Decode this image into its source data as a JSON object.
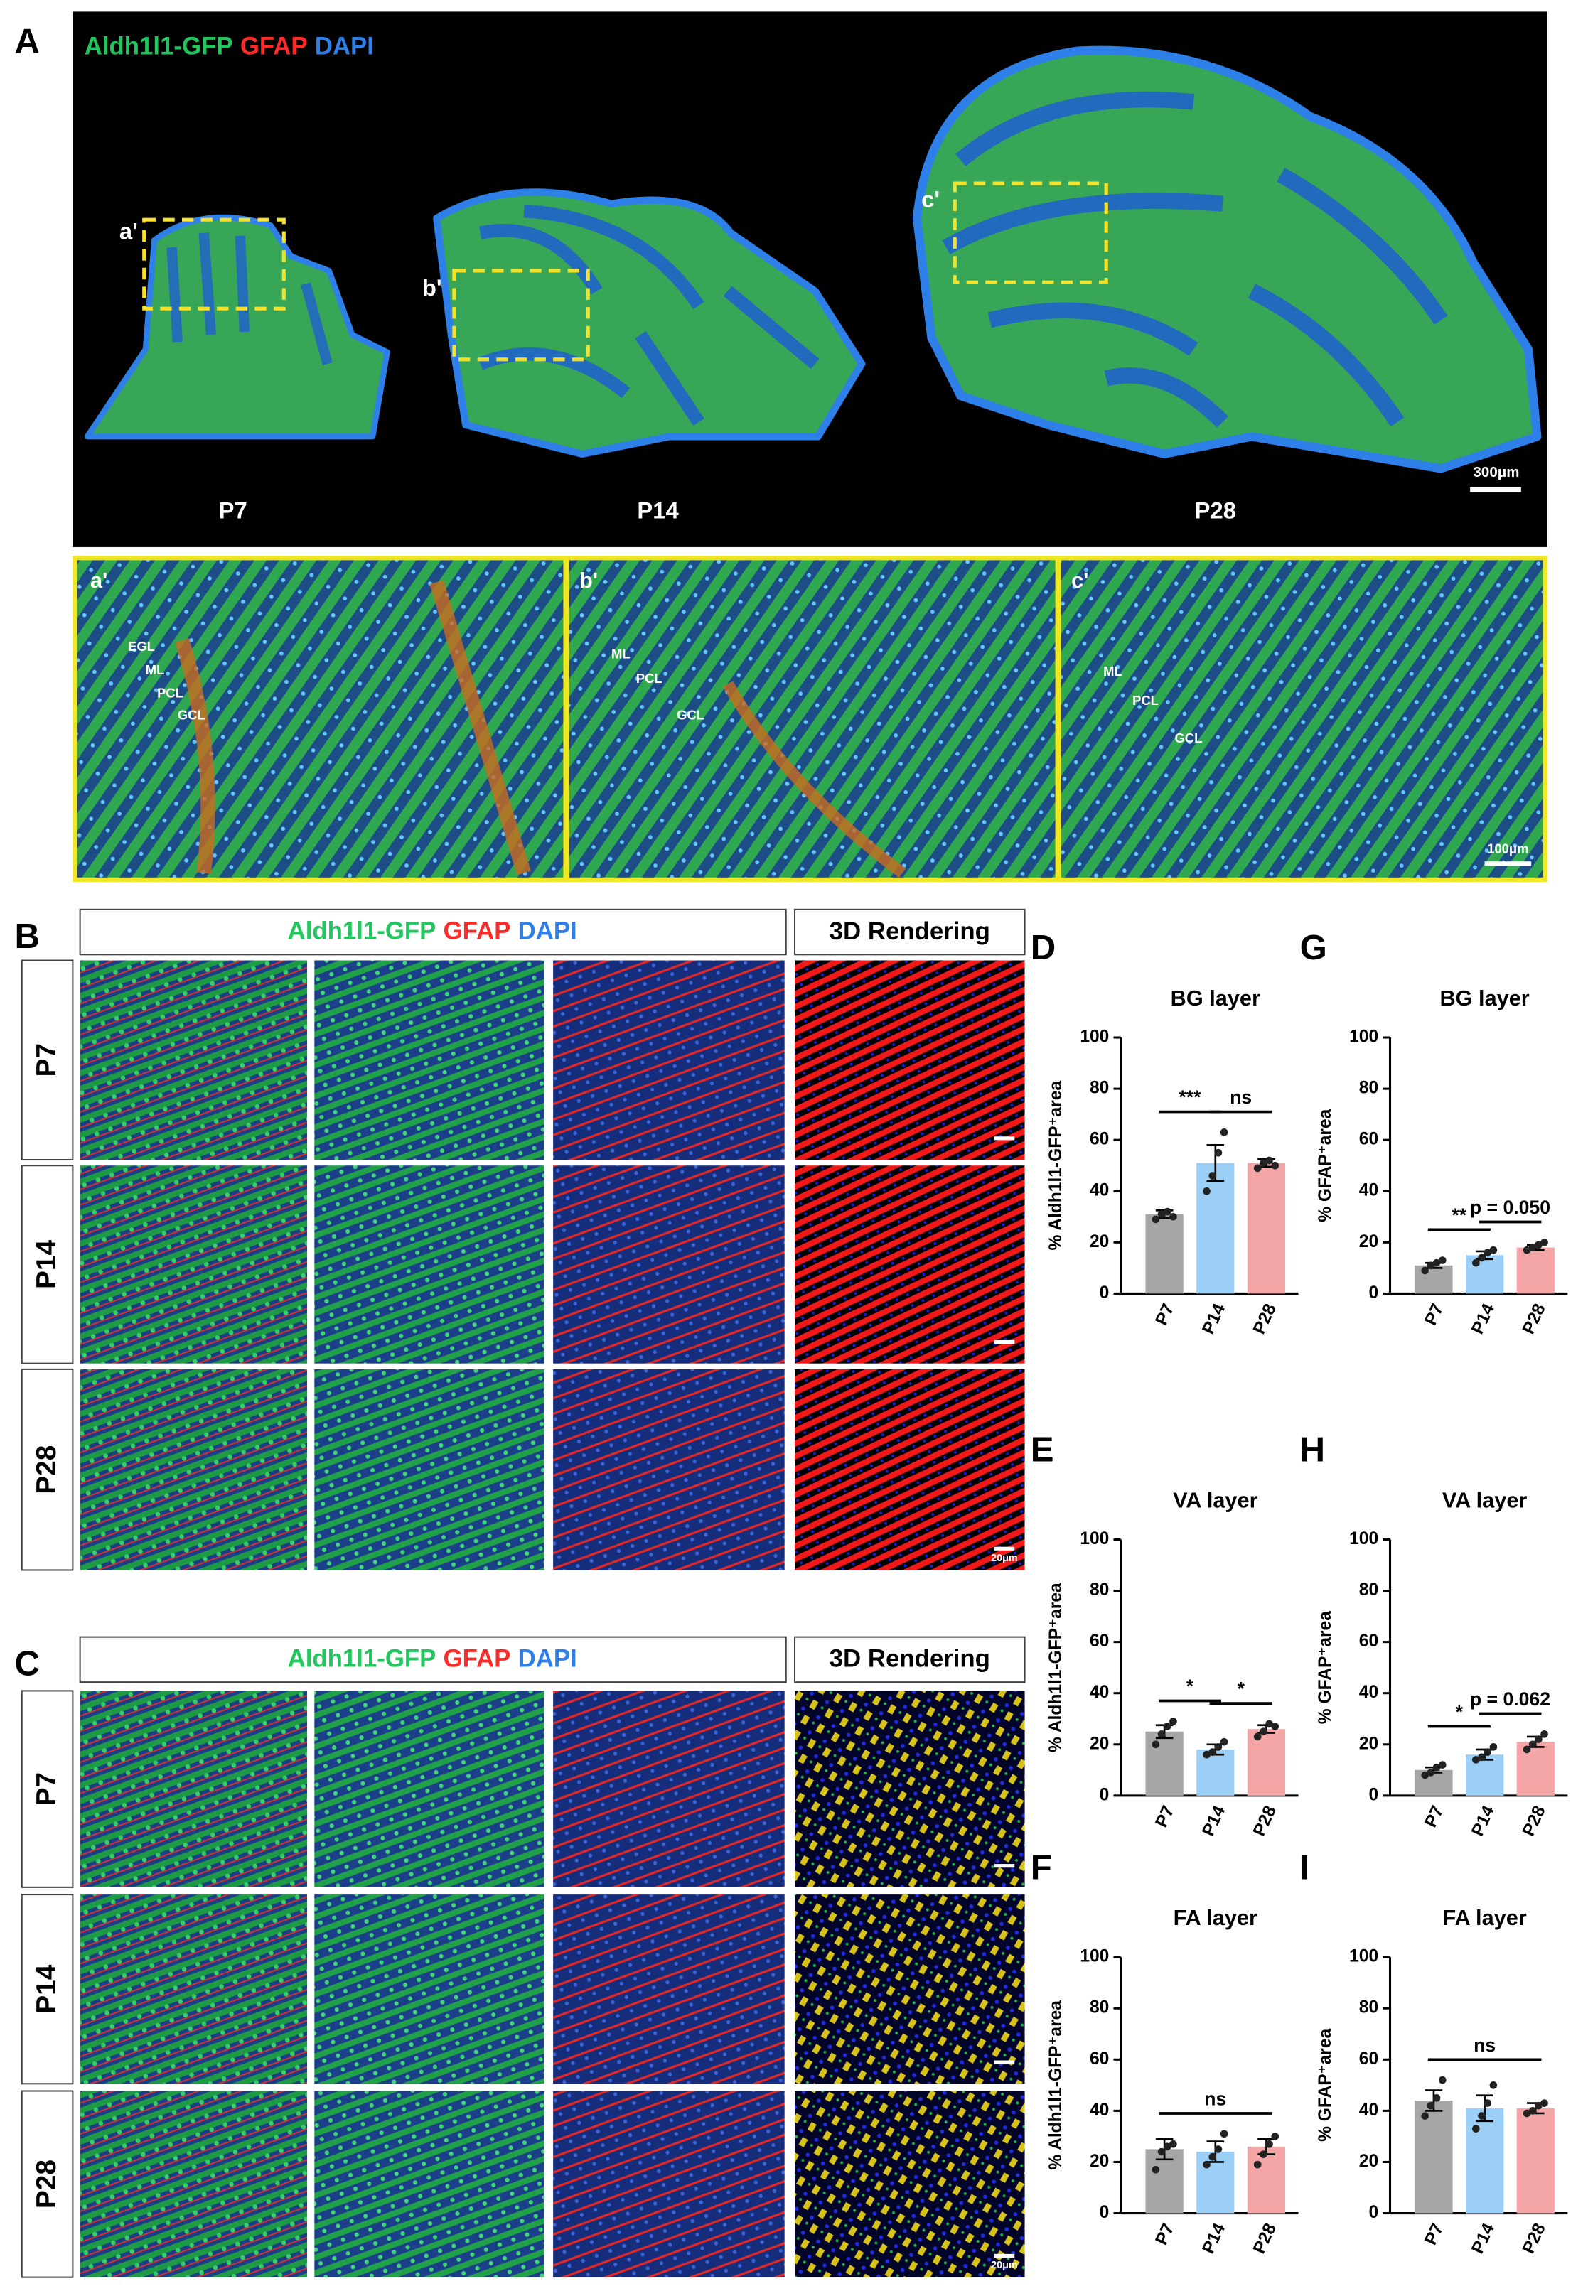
{
  "panel_labels": [
    "A",
    "B",
    "C"
  ],
  "stain_legend": [
    {
      "text": "Aldh1l1-GFP",
      "color": "#22c55e"
    },
    {
      "text": "GFAP",
      "color": "#ff2a2a"
    },
    {
      "text": "DAPI",
      "color": "#2f7fe8"
    }
  ],
  "ages": [
    "P7",
    "P14",
    "P28"
  ],
  "inset_labels": [
    "a'",
    "b'",
    "c'"
  ],
  "layer_labels": [
    "EGL",
    "ML",
    "PCL",
    "GCL"
  ],
  "rendering_header": "3D Rendering",
  "scale_bars": {
    "overview": "300μm",
    "inset": "100μm",
    "panel_b": "20μm",
    "panel_c": "20μm"
  },
  "chart_data": [
    {
      "type": "bar",
      "panel": "D",
      "title": "BG layer",
      "ylabel": "% Aldh1l1-GFP⁺area",
      "categories": [
        "P7",
        "P14",
        "P28"
      ],
      "values": [
        31,
        51,
        51
      ],
      "errors": [
        1.5,
        7,
        1.5
      ],
      "points": [
        [
          29,
          31,
          32,
          30
        ],
        [
          40,
          46,
          55,
          63
        ],
        [
          49,
          51,
          52,
          50
        ]
      ],
      "colors": [
        "#a6a6a6",
        "#9ccff5",
        "#f4a6a6"
      ],
      "ylim": [
        0,
        100
      ],
      "yticks": [
        0,
        20,
        40,
        60,
        80,
        100
      ],
      "annotations": [
        {
          "text": "***",
          "between": [
            0,
            1
          ]
        },
        {
          "text": "ns",
          "between": [
            1,
            2
          ]
        }
      ]
    },
    {
      "type": "bar",
      "panel": "E",
      "title": "VA layer",
      "ylabel": "% Aldh1l1-GFP⁺area",
      "categories": [
        "P7",
        "P14",
        "P28"
      ],
      "values": [
        25,
        18,
        26
      ],
      "errors": [
        2.5,
        2,
        1.5
      ],
      "points": [
        [
          20,
          24,
          27,
          29
        ],
        [
          16,
          17,
          19,
          21
        ],
        [
          23,
          25,
          28,
          27
        ]
      ],
      "colors": [
        "#a6a6a6",
        "#9ccff5",
        "#f4a6a6"
      ],
      "ylim": [
        0,
        100
      ],
      "yticks": [
        0,
        20,
        40,
        60,
        80,
        100
      ],
      "annotations": [
        {
          "text": "*",
          "between": [
            0,
            1
          ]
        },
        {
          "text": "*",
          "between": [
            1,
            2
          ]
        }
      ]
    },
    {
      "type": "bar",
      "panel": "F",
      "title": "FA layer",
      "ylabel": "% Aldh1l1-GFP⁺area",
      "categories": [
        "P7",
        "P14",
        "P28"
      ],
      "values": [
        25,
        24,
        26
      ],
      "errors": [
        4,
        4,
        3
      ],
      "points": [
        [
          17,
          24,
          26,
          27
        ],
        [
          19,
          22,
          25,
          31
        ],
        [
          19,
          23,
          27,
          30
        ]
      ],
      "colors": [
        "#a6a6a6",
        "#9ccff5",
        "#f4a6a6"
      ],
      "ylim": [
        0,
        100
      ],
      "yticks": [
        0,
        20,
        40,
        60,
        80,
        100
      ],
      "annotations": [
        {
          "text": "ns",
          "between": [
            0,
            2
          ]
        }
      ]
    },
    {
      "type": "bar",
      "panel": "G",
      "title": "BG layer",
      "ylabel": "% GFAP⁺area",
      "categories": [
        "P7",
        "P14",
        "P28"
      ],
      "values": [
        11,
        15,
        18
      ],
      "errors": [
        1,
        1.5,
        1
      ],
      "points": [
        [
          9,
          11,
          12,
          13
        ],
        [
          12,
          14,
          16,
          17
        ],
        [
          17,
          18,
          19,
          20
        ]
      ],
      "colors": [
        "#a6a6a6",
        "#9ccff5",
        "#f4a6a6"
      ],
      "ylim": [
        0,
        100
      ],
      "yticks": [
        0,
        20,
        40,
        60,
        80,
        100
      ],
      "annotations": [
        {
          "text": "**",
          "between": [
            0,
            1
          ]
        },
        {
          "text": "p = 0.050",
          "between": [
            1,
            2
          ]
        }
      ]
    },
    {
      "type": "bar",
      "panel": "H",
      "title": "VA layer",
      "ylabel": "% GFAP⁺area",
      "categories": [
        "P7",
        "P14",
        "P28"
      ],
      "values": [
        10,
        16,
        21
      ],
      "errors": [
        1,
        2,
        2
      ],
      "points": [
        [
          8,
          9,
          11,
          12
        ],
        [
          14,
          15,
          17,
          19
        ],
        [
          18,
          20,
          22,
          24
        ]
      ],
      "colors": [
        "#a6a6a6",
        "#9ccff5",
        "#f4a6a6"
      ],
      "ylim": [
        0,
        100
      ],
      "yticks": [
        0,
        20,
        40,
        60,
        80,
        100
      ],
      "annotations": [
        {
          "text": "*",
          "between": [
            0,
            1
          ]
        },
        {
          "text": "p = 0.062",
          "between": [
            1,
            2
          ]
        }
      ]
    },
    {
      "type": "bar",
      "panel": "I",
      "title": "FA layer",
      "ylabel": "% GFAP⁺area",
      "categories": [
        "P7",
        "P14",
        "P28"
      ],
      "values": [
        44,
        41,
        41
      ],
      "errors": [
        4,
        5,
        2
      ],
      "points": [
        [
          38,
          42,
          45,
          52
        ],
        [
          33,
          38,
          43,
          50
        ],
        [
          39,
          40,
          42,
          43
        ]
      ],
      "colors": [
        "#a6a6a6",
        "#9ccff5",
        "#f4a6a6"
      ],
      "ylim": [
        0,
        100
      ],
      "yticks": [
        0,
        20,
        40,
        60,
        80,
        100
      ],
      "annotations": [
        {
          "text": "ns",
          "between": [
            0,
            2
          ]
        }
      ]
    }
  ]
}
